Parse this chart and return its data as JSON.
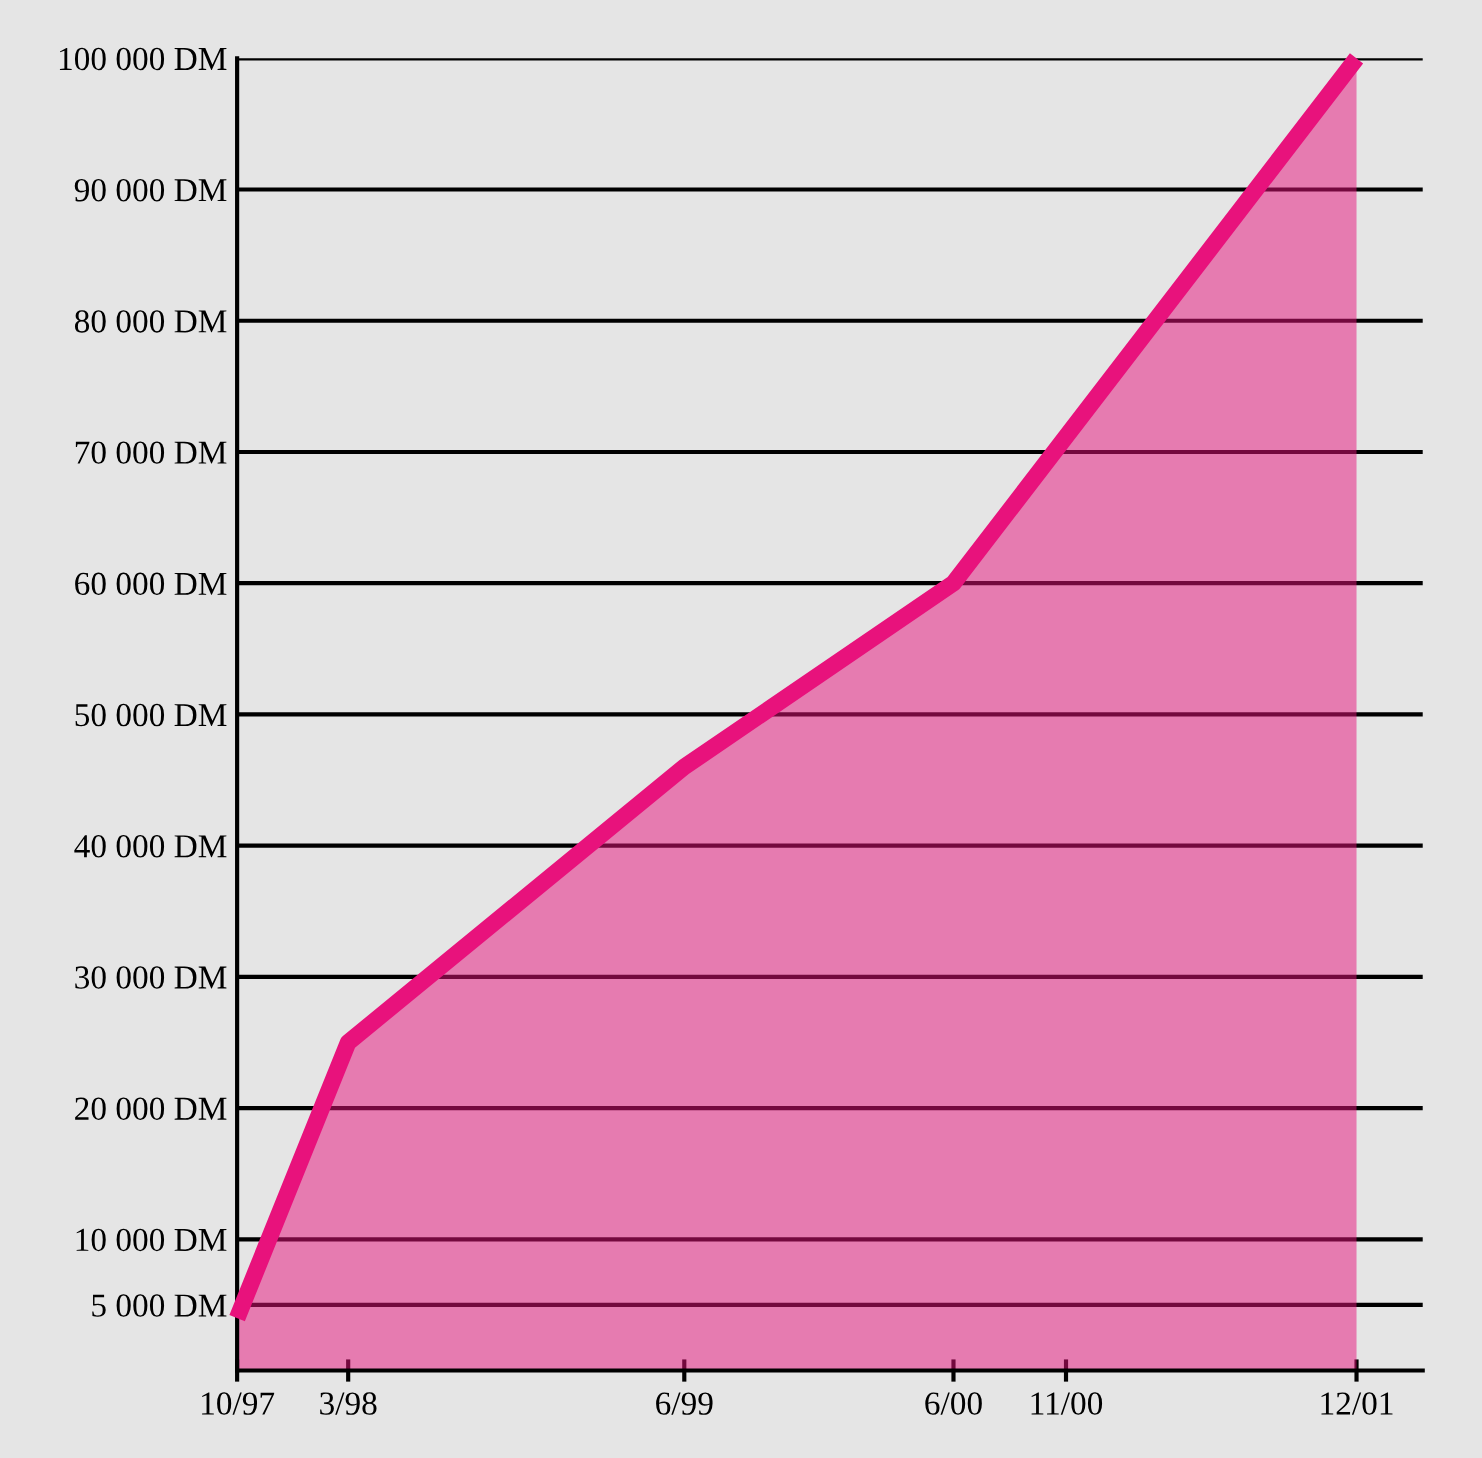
{
  "chart_data": {
    "type": "area",
    "x": [
      "1997-10",
      "1998-03",
      "1999-06",
      "2000-06",
      "2001-12"
    ],
    "series": [
      {
        "color": "#e8127c",
        "values": [
          4000,
          25000,
          46000,
          60000,
          100000
        ]
      }
    ],
    "xlim": [
      "1997-10",
      "2002-03"
    ],
    "xticks": [
      {
        "value": "1997-10",
        "label": "10/97"
      },
      {
        "value": "1998-03",
        "label": "3/98"
      },
      {
        "value": "1999-06",
        "label": "6/99"
      },
      {
        "value": "2000-06",
        "label": "6/00"
      },
      {
        "value": "2000-11",
        "label": "11/00"
      },
      {
        "value": "2001-12",
        "label": "12/01"
      }
    ],
    "ylim": [
      0,
      100000
    ],
    "yticks": [
      {
        "value": 5000,
        "label": "5 000 DM"
      },
      {
        "value": 10000,
        "label": "10 000 DM"
      },
      {
        "value": 20000,
        "label": "20 000 DM"
      },
      {
        "value": 30000,
        "label": "30 000 DM"
      },
      {
        "value": 40000,
        "label": "40 000 DM"
      },
      {
        "value": 50000,
        "label": "50 000 DM"
      },
      {
        "value": 60000,
        "label": "60 000 DM"
      },
      {
        "value": 70000,
        "label": "70 000 DM"
      },
      {
        "value": 80000,
        "label": "80 000 DM"
      },
      {
        "value": 90000,
        "label": "90 000 DM"
      },
      {
        "value": 100000,
        "label": "100 000 DM"
      }
    ],
    "grid": "y",
    "legend": false
  }
}
